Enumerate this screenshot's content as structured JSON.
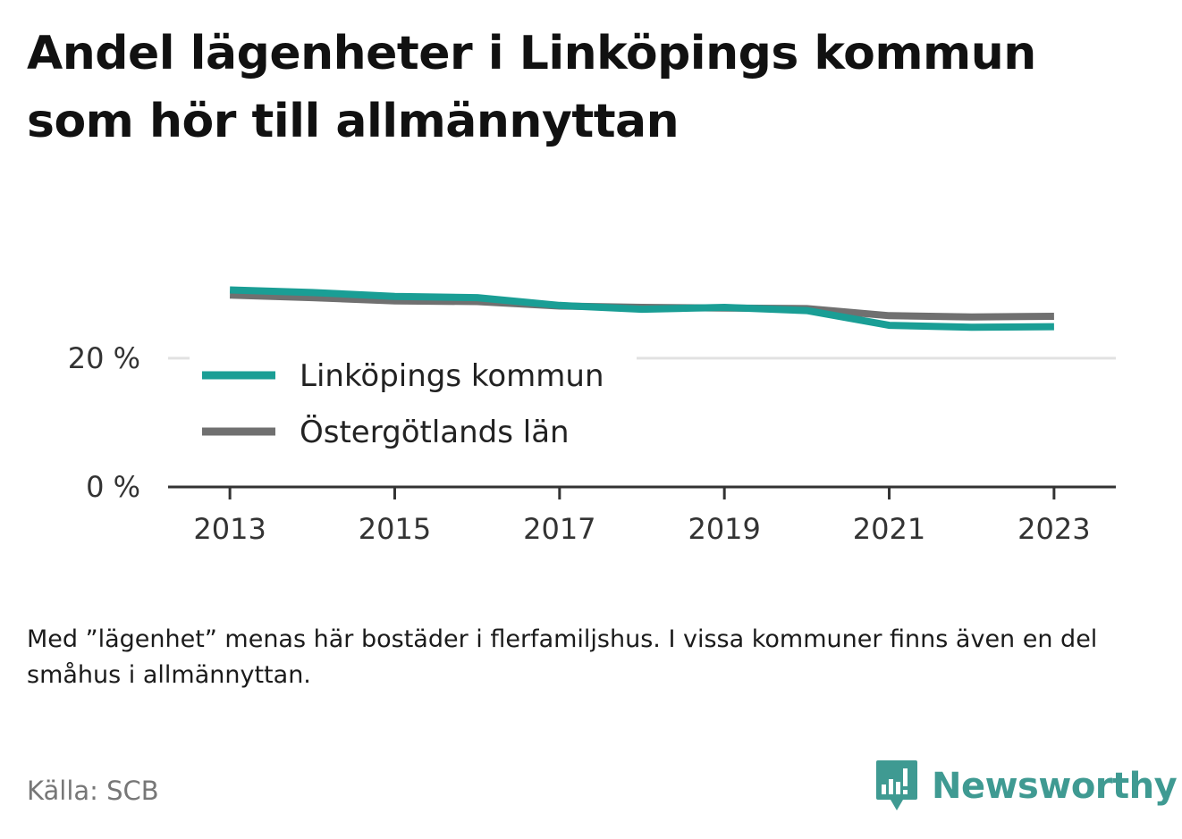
{
  "title": "Andel lägenheter i Linköpings kommun som hör till allmännyttan",
  "note": "Med ”lägenhet” menas här bostäder i flerfamiljshus. I vissa kommuner finns även en del småhus i allmännyttan.",
  "source": "Källa: SCB",
  "brand": {
    "name": "Newsworthy",
    "icon": "bar-chart-speech-bubble-icon",
    "color": "#3f9a92"
  },
  "chart_data": {
    "type": "line",
    "x": [
      2013,
      2014,
      2015,
      2016,
      2017,
      2018,
      2019,
      2020,
      2021,
      2022,
      2023
    ],
    "xticks": [
      "2013",
      "2015",
      "2017",
      "2019",
      "2021",
      "2023"
    ],
    "xlim": [
      2012.25,
      2023.75
    ],
    "ylim": [
      0,
      34
    ],
    "yticks": [
      0,
      20
    ],
    "ytick_labels": [
      "0 %",
      "20 %"
    ],
    "grid": true,
    "legend_position": "bottom-left",
    "series": [
      {
        "name": "Linköpings kommun",
        "color": "#1a9e95",
        "values": [
          30.6,
          30.2,
          29.6,
          29.4,
          28.2,
          27.6,
          27.9,
          27.4,
          25.1,
          24.8,
          24.9
        ]
      },
      {
        "name": "Östergötlands län",
        "color": "#707070",
        "values": [
          29.8,
          29.4,
          28.9,
          28.8,
          28.1,
          27.9,
          27.8,
          27.7,
          26.6,
          26.4,
          26.5
        ]
      }
    ]
  }
}
